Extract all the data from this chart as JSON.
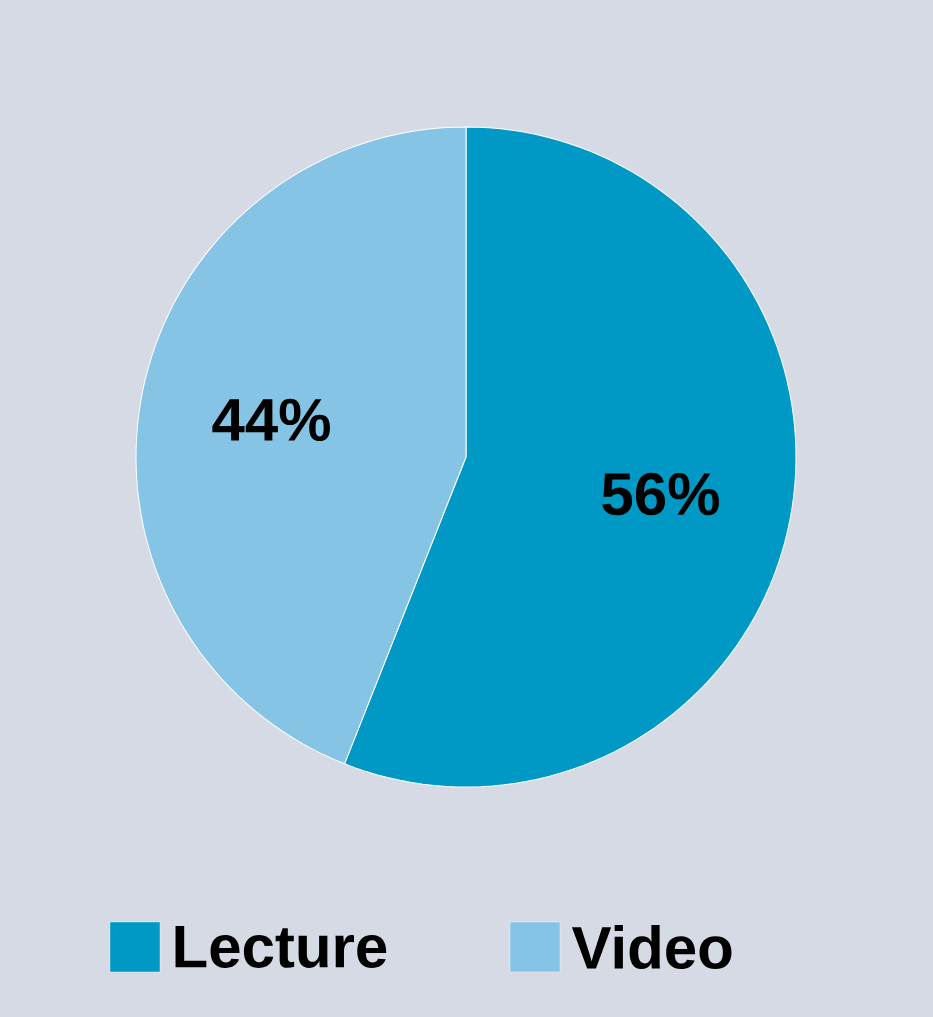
{
  "chart_data": {
    "type": "pie",
    "categories": [
      "Lecture",
      "Video"
    ],
    "values": [
      56,
      44
    ],
    "colors": [
      "#0099c6",
      "#85c4e4"
    ],
    "value_labels": [
      "56%",
      "44%"
    ],
    "legend": "bottom"
  }
}
